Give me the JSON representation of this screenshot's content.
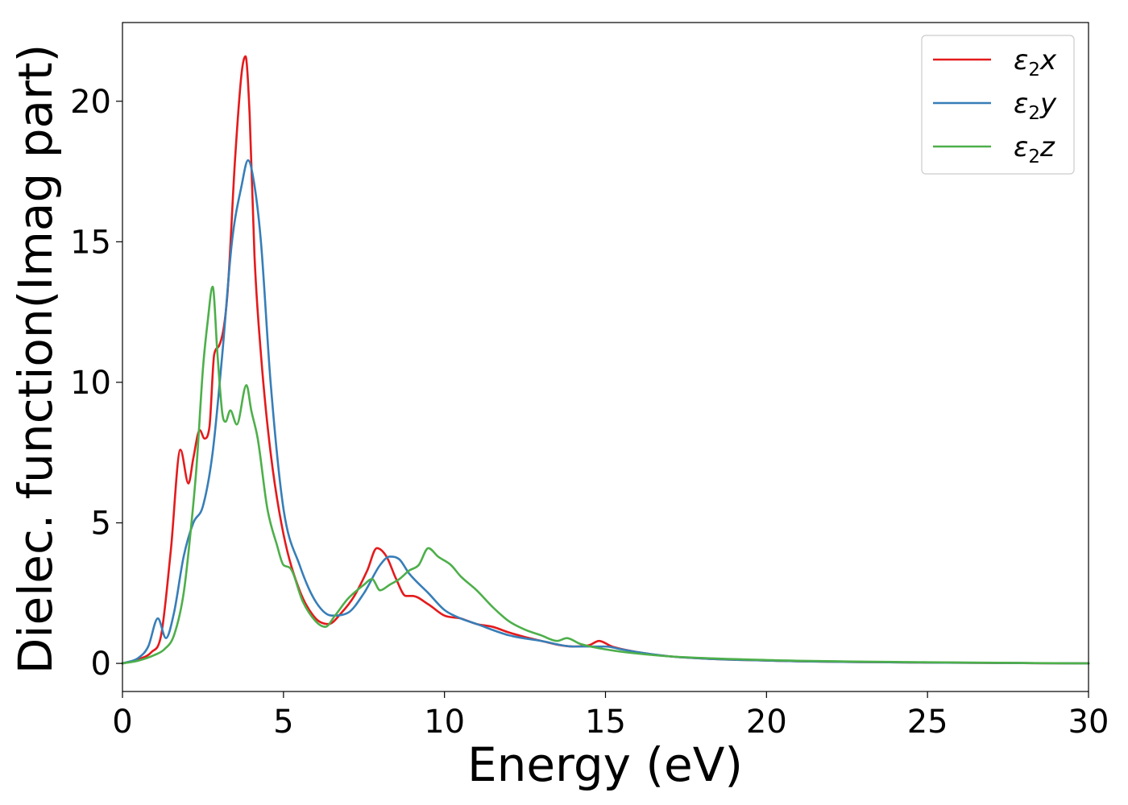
{
  "chart_data": {
    "type": "line",
    "xlabel": "Energy (eV)",
    "ylabel": "Dielec. function(Imag part)",
    "xlim": [
      0,
      30
    ],
    "ylim": [
      -1,
      22.8
    ],
    "xticks": [
      0,
      5,
      10,
      15,
      20,
      25,
      30
    ],
    "yticks": [
      0,
      5,
      10,
      15,
      20
    ],
    "grid": false,
    "legend_position": "top-right",
    "series": [
      {
        "name": "ε₂x",
        "legend_base": "ε",
        "legend_sub": "2",
        "legend_suffix": "x",
        "color": "#e41a1c",
        "x": [
          0,
          0.5,
          0.9,
          1.2,
          1.5,
          1.8,
          2.05,
          2.2,
          2.4,
          2.55,
          2.7,
          2.85,
          3.0,
          3.25,
          3.5,
          3.7,
          3.82,
          3.95,
          4.1,
          4.3,
          4.6,
          5.0,
          5.5,
          6.0,
          6.4,
          6.8,
          7.2,
          7.6,
          7.9,
          8.2,
          8.5,
          8.8,
          9.0,
          9.5,
          10.0,
          10.5,
          11.0,
          11.5,
          12.0,
          13.0,
          14.0,
          14.5,
          14.8,
          15.2,
          16.0,
          17.0,
          20.0,
          25.0,
          30.0
        ],
        "y": [
          0,
          0.15,
          0.4,
          1.0,
          4.0,
          7.6,
          6.4,
          7.3,
          8.3,
          8.0,
          8.4,
          11.0,
          11.3,
          13.0,
          18.0,
          21.0,
          21.6,
          19.5,
          14.5,
          11.0,
          7.5,
          4.6,
          2.6,
          1.6,
          1.4,
          1.8,
          2.4,
          3.3,
          4.1,
          3.8,
          3.0,
          2.4,
          2.4,
          2.1,
          1.7,
          1.6,
          1.4,
          1.3,
          1.1,
          0.8,
          0.6,
          0.65,
          0.8,
          0.6,
          0.4,
          0.25,
          0.1,
          0.03,
          0.0
        ]
      },
      {
        "name": "ε₂y",
        "legend_base": "ε",
        "legend_sub": "2",
        "legend_suffix": "y",
        "color": "#377eb8",
        "x": [
          0,
          0.5,
          0.8,
          1.1,
          1.35,
          1.6,
          1.9,
          2.2,
          2.5,
          2.8,
          3.1,
          3.4,
          3.7,
          3.9,
          4.1,
          4.3,
          4.6,
          5.0,
          5.5,
          6.0,
          6.5,
          7.0,
          7.5,
          8.0,
          8.3,
          8.6,
          8.9,
          9.5,
          10.0,
          10.5,
          11.0,
          12.0,
          13.0,
          14.0,
          15.0,
          15.5,
          16.0,
          17.0,
          20.0,
          25.0,
          30.0
        ],
        "y": [
          0,
          0.2,
          0.6,
          1.6,
          0.9,
          1.8,
          3.8,
          5.0,
          5.6,
          7.5,
          11.0,
          15.0,
          17.0,
          17.9,
          17.0,
          15.0,
          10.0,
          5.5,
          3.5,
          2.2,
          1.7,
          1.8,
          2.5,
          3.5,
          3.8,
          3.7,
          3.2,
          2.5,
          1.9,
          1.6,
          1.4,
          1.0,
          0.8,
          0.6,
          0.6,
          0.5,
          0.4,
          0.25,
          0.1,
          0.03,
          0.0
        ]
      },
      {
        "name": "ε₂z",
        "legend_base": "ε",
        "legend_sub": "2",
        "legend_suffix": "z",
        "color": "#4daf4a",
        "x": [
          0,
          0.5,
          1.0,
          1.3,
          1.6,
          1.9,
          2.1,
          2.3,
          2.5,
          2.65,
          2.8,
          2.95,
          3.1,
          3.2,
          3.35,
          3.55,
          3.85,
          4.0,
          4.2,
          4.5,
          4.8,
          5.0,
          5.2,
          5.6,
          6.0,
          6.3,
          6.6,
          7.0,
          7.5,
          7.75,
          8.0,
          8.3,
          8.6,
          8.9,
          9.2,
          9.5,
          9.8,
          10.2,
          10.5,
          11.0,
          11.5,
          12.0,
          12.5,
          13.0,
          13.5,
          13.8,
          14.2,
          15.0,
          16.0,
          17.0,
          20.0,
          25.0,
          30.0
        ],
        "y": [
          0,
          0.1,
          0.3,
          0.5,
          1.0,
          2.5,
          4.5,
          7.0,
          10.5,
          12.2,
          13.4,
          11.0,
          8.9,
          8.6,
          9.0,
          8.5,
          9.9,
          9.0,
          8.0,
          5.5,
          4.2,
          3.5,
          3.4,
          2.2,
          1.5,
          1.3,
          1.7,
          2.3,
          2.8,
          3.0,
          2.6,
          2.8,
          3.0,
          3.3,
          3.5,
          4.1,
          3.8,
          3.5,
          3.1,
          2.6,
          2.0,
          1.5,
          1.2,
          1.0,
          0.8,
          0.9,
          0.7,
          0.5,
          0.35,
          0.25,
          0.12,
          0.04,
          0.0
        ]
      }
    ]
  }
}
